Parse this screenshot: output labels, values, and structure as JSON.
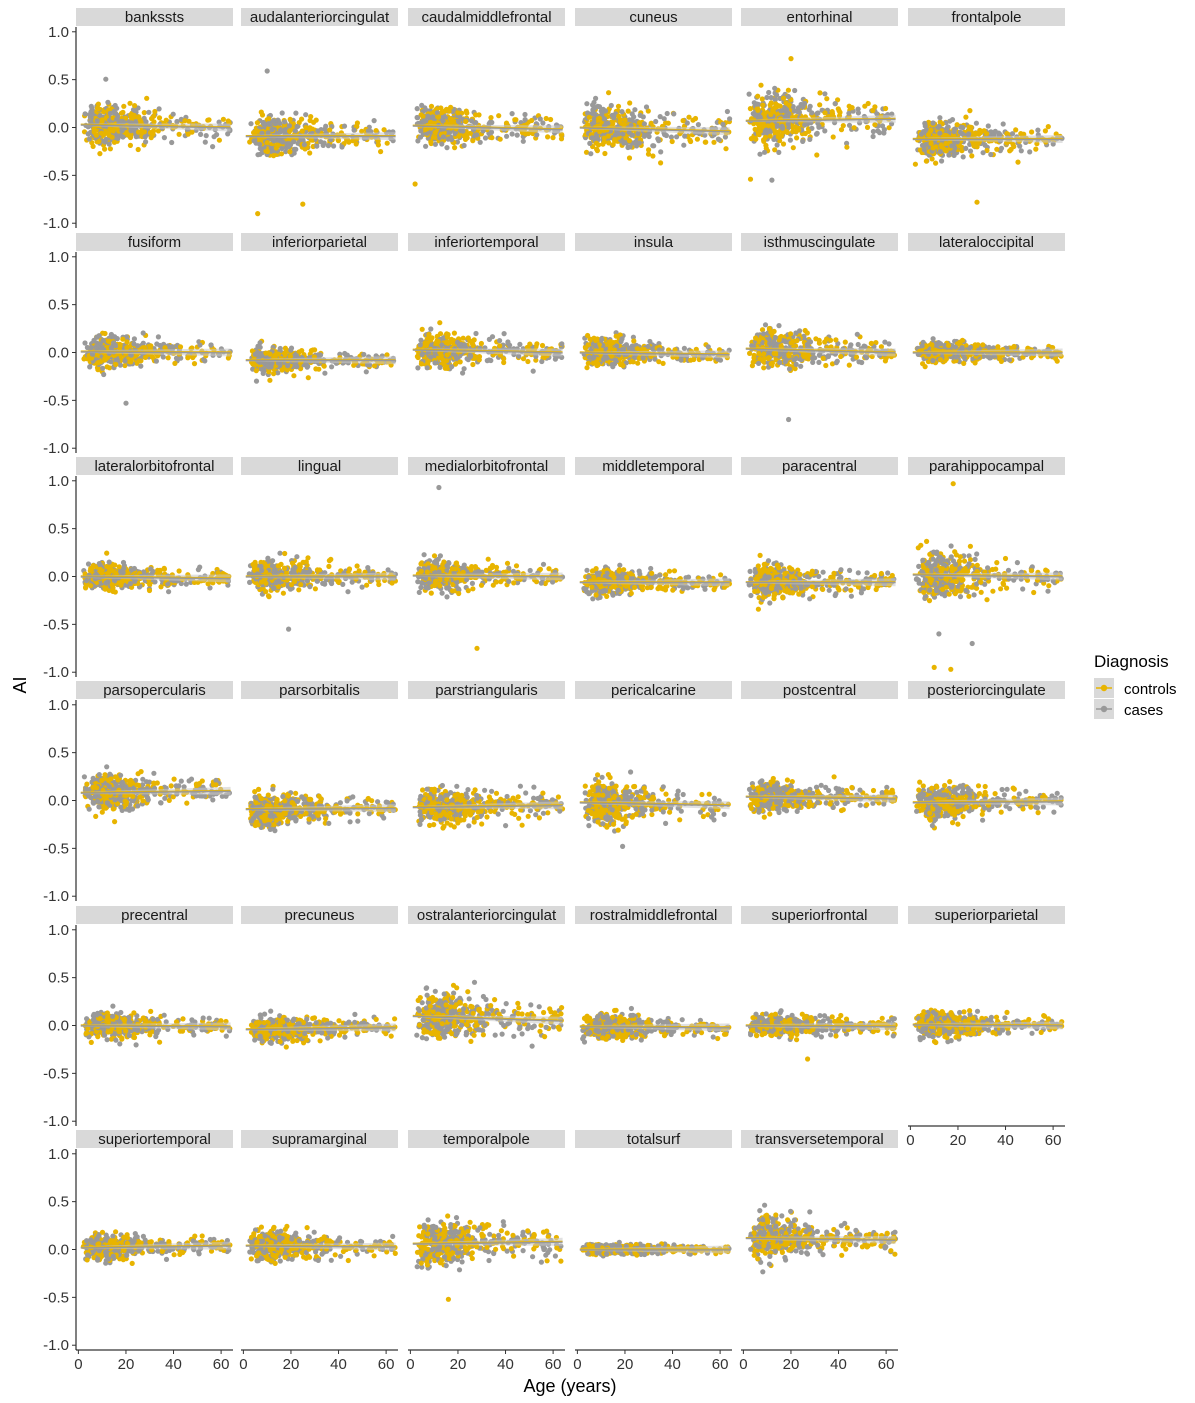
{
  "chart_data": {
    "type": "scatter",
    "subtype": "faceted scatter with smoothed trend lines",
    "xlabel": "Age (years)",
    "ylabel": "AI",
    "xlim": [
      -1,
      65
    ],
    "ylim": [
      -1.05,
      1.05
    ],
    "x_ticks": [
      0,
      20,
      40,
      60
    ],
    "y_ticks": [
      1.0,
      0.5,
      0.0,
      -0.5,
      -1.0
    ],
    "y_tick_labels": [
      "1.0",
      "0.5",
      "0.0",
      "-0.5",
      "-1.0"
    ],
    "x_tick_labels": [
      "0",
      "20",
      "40",
      "60"
    ],
    "grid": false,
    "legend": {
      "title": "Diagnosis",
      "placement": "right",
      "entries": [
        {
          "label": "controls",
          "color": "#E8B400"
        },
        {
          "label": "cases",
          "color": "#999999"
        }
      ]
    },
    "colors": {
      "controls": "#E8B400",
      "cases": "#999999",
      "strip": "#D9D9D9",
      "smooth_band": "#C8C8C8"
    },
    "panels": [
      {
        "title": "bankssts",
        "spread": 0.11,
        "center": 0.03,
        "trend_end": 0.0
      },
      {
        "title": "caudalanteriorcingulate",
        "display_title": "audalanteriorcingulat",
        "spread": 0.11,
        "center": -0.09,
        "trend_end": -0.09,
        "outliers": [
          {
            "x": 10,
            "y": 0.59,
            "series": "cases"
          },
          {
            "x": 6,
            "y": -0.9,
            "series": "controls"
          },
          {
            "x": 25,
            "y": -0.8,
            "series": "controls"
          }
        ]
      },
      {
        "title": "caudalmiddlefrontal",
        "spread": 0.1,
        "center": 0.02,
        "trend_end": -0.02,
        "outliers": [
          {
            "x": 2,
            "y": -0.59,
            "series": "controls"
          }
        ]
      },
      {
        "title": "cuneus",
        "spread": 0.12,
        "center": 0.0,
        "trend_end": -0.04,
        "outliers": [
          {
            "x": 35,
            "y": -0.37,
            "series": "controls"
          }
        ]
      },
      {
        "title": "entorhinal",
        "spread": 0.15,
        "center": 0.07,
        "trend_end": 0.09,
        "outliers": [
          {
            "x": 20,
            "y": 0.72,
            "series": "controls"
          },
          {
            "x": 12,
            "y": -0.55,
            "series": "cases"
          },
          {
            "x": 3,
            "y": -0.54,
            "series": "controls"
          }
        ]
      },
      {
        "title": "frontalpole",
        "spread": 0.1,
        "center": -0.12,
        "trend_end": -0.12,
        "outliers": [
          {
            "x": 28,
            "y": -0.78,
            "series": "controls"
          }
        ]
      },
      {
        "title": "fusiform",
        "spread": 0.08,
        "center": 0.01,
        "trend_end": 0.0,
        "outliers": [
          {
            "x": 20,
            "y": -0.53,
            "series": "cases"
          }
        ]
      },
      {
        "title": "inferiorparietal",
        "spread": 0.07,
        "center": -0.08,
        "trend_end": -0.08
      },
      {
        "title": "inferiortemporal",
        "spread": 0.09,
        "center": 0.03,
        "trend_end": 0.0
      },
      {
        "title": "insula",
        "spread": 0.07,
        "center": 0.0,
        "trend_end": -0.02
      },
      {
        "title": "isthmuscingulate",
        "spread": 0.1,
        "center": 0.04,
        "trend_end": 0.0,
        "outliers": [
          {
            "x": 19,
            "y": -0.7,
            "series": "cases"
          }
        ]
      },
      {
        "title": "lateraloccipital",
        "spread": 0.06,
        "center": 0.0,
        "trend_end": 0.0
      },
      {
        "title": "lateralorbitofrontal",
        "spread": 0.07,
        "center": 0.0,
        "trend_end": -0.02
      },
      {
        "title": "lingual",
        "spread": 0.09,
        "center": 0.0,
        "trend_end": 0.0,
        "outliers": [
          {
            "x": 19,
            "y": -0.55,
            "series": "cases"
          }
        ]
      },
      {
        "title": "medialorbitofrontal",
        "spread": 0.08,
        "center": 0.01,
        "trend_end": 0.0,
        "outliers": [
          {
            "x": 12,
            "y": 0.93,
            "series": "cases"
          },
          {
            "x": 28,
            "y": -0.75,
            "series": "controls"
          }
        ]
      },
      {
        "title": "middletemporal",
        "spread": 0.07,
        "center": -0.06,
        "trend_end": -0.06
      },
      {
        "title": "paracentral",
        "spread": 0.09,
        "center": -0.06,
        "trend_end": -0.06
      },
      {
        "title": "parahippocampal",
        "spread": 0.12,
        "center": 0.02,
        "trend_end": 0.0,
        "outliers": [
          {
            "x": 18,
            "y": 0.97,
            "series": "controls"
          },
          {
            "x": 10,
            "y": -0.95,
            "series": "controls"
          },
          {
            "x": 17,
            "y": -0.97,
            "series": "controls"
          },
          {
            "x": 26,
            "y": -0.7,
            "series": "cases"
          },
          {
            "x": 12,
            "y": -0.6,
            "series": "cases"
          }
        ]
      },
      {
        "title": "parsopercularis",
        "spread": 0.1,
        "center": 0.08,
        "trend_end": 0.1
      },
      {
        "title": "parsorbitalis",
        "spread": 0.09,
        "center": -0.09,
        "trend_end": -0.08
      },
      {
        "title": "parstriangularis",
        "spread": 0.1,
        "center": -0.07,
        "trend_end": -0.05
      },
      {
        "title": "pericalcarine",
        "spread": 0.12,
        "center": -0.02,
        "trend_end": -0.05,
        "outliers": [
          {
            "x": 19,
            "y": -0.48,
            "series": "cases"
          }
        ]
      },
      {
        "title": "postcentral",
        "spread": 0.08,
        "center": 0.04,
        "trend_end": 0.02
      },
      {
        "title": "posteriorcingulate",
        "spread": 0.09,
        "center": -0.02,
        "trend_end": -0.01
      },
      {
        "title": "precentral",
        "spread": 0.07,
        "center": 0.0,
        "trend_end": -0.01
      },
      {
        "title": "precuneus",
        "spread": 0.07,
        "center": -0.04,
        "trend_end": -0.02
      },
      {
        "title": "rostralanteriorcingulate",
        "display_title": "ostralanteriorcingulat",
        "spread": 0.13,
        "center": 0.1,
        "trend_end": 0.05
      },
      {
        "title": "rostralmiddlefrontal",
        "spread": 0.07,
        "center": -0.01,
        "trend_end": -0.02
      },
      {
        "title": "superiorfrontal",
        "spread": 0.06,
        "center": 0.0,
        "trend_end": -0.01,
        "outliers": [
          {
            "x": 27,
            "y": -0.35,
            "series": "controls"
          }
        ]
      },
      {
        "title": "superiorparietal",
        "spread": 0.07,
        "center": 0.01,
        "trend_end": 0.0
      },
      {
        "title": "superiortemporal",
        "spread": 0.07,
        "center": 0.02,
        "trend_end": 0.04
      },
      {
        "title": "supramarginal",
        "spread": 0.08,
        "center": 0.04,
        "trend_end": 0.03
      },
      {
        "title": "temporalpole",
        "spread": 0.12,
        "center": 0.06,
        "trend_end": 0.08,
        "outliers": [
          {
            "x": 16,
            "y": -0.52,
            "series": "controls"
          }
        ]
      },
      {
        "title": "totalsurf",
        "spread": 0.03,
        "center": 0.0,
        "trend_end": 0.0
      },
      {
        "title": "transversetemporal",
        "spread": 0.11,
        "center": 0.12,
        "trend_end": 0.1
      }
    ]
  }
}
